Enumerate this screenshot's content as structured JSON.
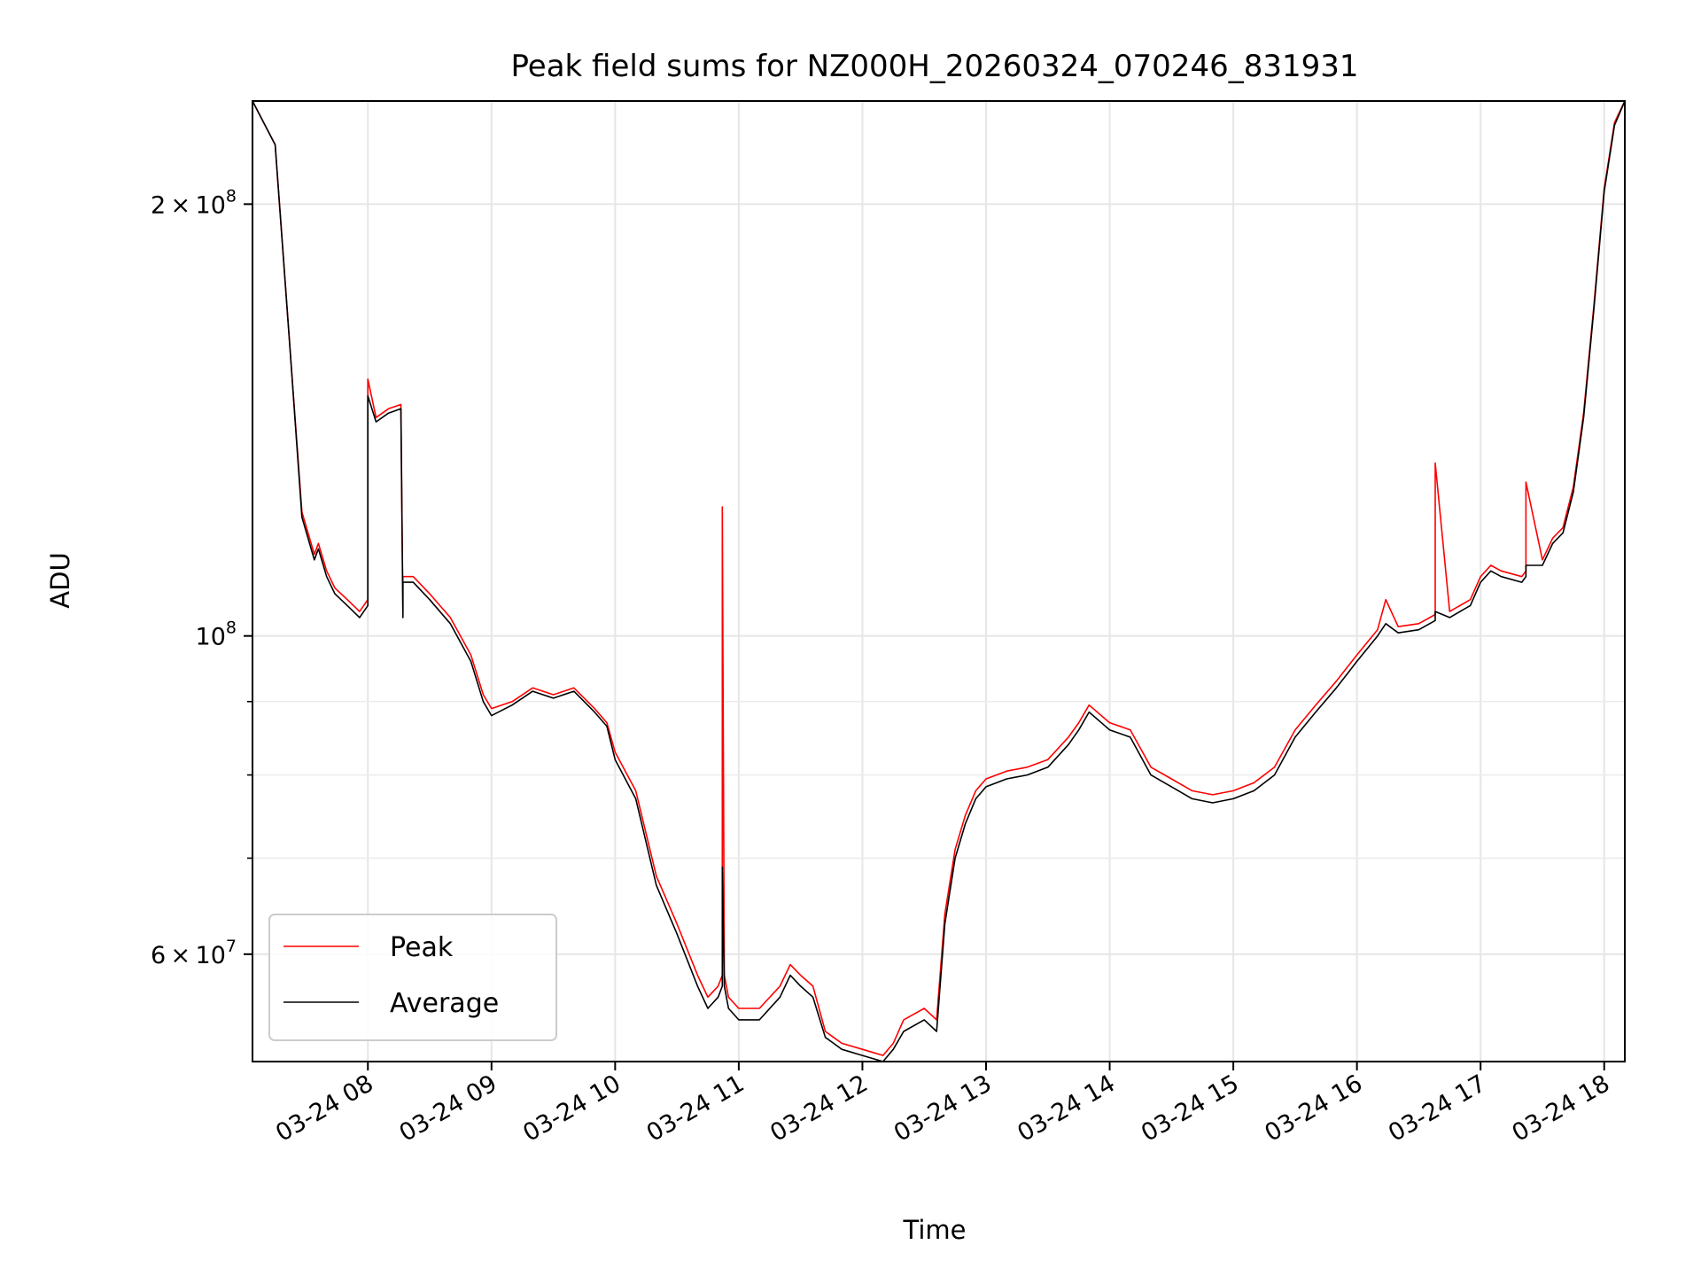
{
  "chart_data": {
    "type": "line",
    "title": "Peak field sums for NZ000H_20260324_070246_831931",
    "xlabel": "Time",
    "ylabel": "ADU",
    "y_scale": "log",
    "xlim": [
      "2026-03-24 07:04",
      "2026-03-24 18:10"
    ],
    "ylim": [
      50500000,
      236000000
    ],
    "x_ticks": [
      "2026-03-24 08:00",
      "2026-03-24 09:00",
      "2026-03-24 10:00",
      "2026-03-24 11:00",
      "2026-03-24 12:00",
      "2026-03-24 13:00",
      "2026-03-24 14:00",
      "2026-03-24 15:00",
      "2026-03-24 16:00",
      "2026-03-24 17:00",
      "2026-03-24 18:00"
    ],
    "x_tick_labels": [
      "03-24 08",
      "03-24 09",
      "03-24 10",
      "03-24 11",
      "03-24 12",
      "03-24 13",
      "03-24 14",
      "03-24 15",
      "03-24 16",
      "03-24 17",
      "03-24 18"
    ],
    "y_ticks": [
      200000000,
      100000000,
      60000000
    ],
    "y_tick_labels": [
      {
        "mantissa": "2",
        "exponent": "8"
      },
      {
        "mantissa": "",
        "exponent": "8"
      },
      {
        "mantissa": "6",
        "exponent": "7"
      }
    ],
    "grid": true,
    "legend_position": "lower-left",
    "series": [
      {
        "name": "Peak",
        "color": "#ff0000",
        "x": [
          "07:04",
          "07:15",
          "07:22",
          "07:28",
          "07:34",
          "07:36",
          "07:40",
          "07:44",
          "07:50",
          "07:56",
          "08:00",
          "08:00",
          "08:04",
          "08:10",
          "08:16",
          "08:17",
          "08:17",
          "08:22",
          "08:30",
          "08:40",
          "08:50",
          "08:56",
          "09:00",
          "09:10",
          "09:20",
          "09:30",
          "09:40",
          "09:50",
          "09:56",
          "10:00",
          "10:10",
          "10:20",
          "10:30",
          "10:40",
          "10:45",
          "10:50",
          "10:52",
          "10:52",
          "10:53",
          "10:55",
          "11:00",
          "11:10",
          "11:20",
          "11:25",
          "11:30",
          "11:36",
          "11:42",
          "11:46",
          "11:50",
          "12:00",
          "12:10",
          "12:15",
          "12:20",
          "12:30",
          "12:36",
          "12:40",
          "12:45",
          "12:50",
          "12:55",
          "13:00",
          "13:10",
          "13:20",
          "13:30",
          "13:40",
          "13:45",
          "13:50",
          "14:00",
          "14:10",
          "14:20",
          "14:30",
          "14:40",
          "14:50",
          "15:00",
          "15:10",
          "15:20",
          "15:30",
          "15:40",
          "15:50",
          "16:00",
          "16:10",
          "16:14",
          "16:20",
          "16:30",
          "16:38",
          "16:38",
          "16:45",
          "16:55",
          "17:00",
          "17:05",
          "17:10",
          "17:20",
          "17:22",
          "17:22",
          "17:30",
          "17:35",
          "17:40",
          "17:45",
          "17:50",
          "17:55",
          "18:00",
          "18:05",
          "18:10"
        ],
        "y": [
          236000000,
          220000000,
          160000000,
          122000000,
          114000000,
          116000000,
          111000000,
          108000000,
          106000000,
          104000000,
          106000000,
          151000000,
          142000000,
          144000000,
          145000000,
          104000000,
          110000000,
          110000000,
          107000000,
          103000000,
          97000000,
          91000000,
          89000000,
          90000000,
          92000000,
          91000000,
          92000000,
          89000000,
          87000000,
          83000000,
          78000000,
          68000000,
          63000000,
          58000000,
          56000000,
          57000000,
          58000000,
          123000000,
          58000000,
          56000000,
          55000000,
          55000000,
          57000000,
          59000000,
          58000000,
          57000000,
          53000000,
          52500000,
          52000000,
          51500000,
          51000000,
          52000000,
          54000000,
          55000000,
          54000000,
          64000000,
          71000000,
          75000000,
          78000000,
          79500000,
          80500000,
          81000000,
          82000000,
          85000000,
          87000000,
          89500000,
          87000000,
          86000000,
          81000000,
          79500000,
          78000000,
          77500000,
          78000000,
          79000000,
          81000000,
          86000000,
          89500000,
          93000000,
          97000000,
          101000000,
          106000000,
          101500000,
          102000000,
          103500000,
          132000000,
          104000000,
          106000000,
          110000000,
          112000000,
          111000000,
          110000000,
          111000000,
          128000000,
          113000000,
          117000000,
          119000000,
          127000000,
          143000000,
          170000000,
          205000000,
          228000000,
          236000000
        ]
      },
      {
        "name": "Average",
        "color": "#000000",
        "x": [
          "07:04",
          "07:15",
          "07:22",
          "07:28",
          "07:34",
          "07:36",
          "07:40",
          "07:44",
          "07:50",
          "07:56",
          "08:00",
          "08:00",
          "08:04",
          "08:10",
          "08:16",
          "08:17",
          "08:17",
          "08:22",
          "08:30",
          "08:40",
          "08:50",
          "08:56",
          "09:00",
          "09:10",
          "09:20",
          "09:30",
          "09:40",
          "09:50",
          "09:56",
          "10:00",
          "10:10",
          "10:20",
          "10:30",
          "10:40",
          "10:45",
          "10:50",
          "10:52",
          "10:52",
          "10:53",
          "10:55",
          "11:00",
          "11:10",
          "11:20",
          "11:25",
          "11:30",
          "11:36",
          "11:42",
          "11:46",
          "11:50",
          "12:00",
          "12:10",
          "12:15",
          "12:20",
          "12:30",
          "12:36",
          "12:40",
          "12:45",
          "12:50",
          "12:55",
          "13:00",
          "13:10",
          "13:20",
          "13:30",
          "13:40",
          "13:45",
          "13:50",
          "14:00",
          "14:10",
          "14:20",
          "14:30",
          "14:40",
          "14:50",
          "15:00",
          "15:10",
          "15:20",
          "15:30",
          "15:40",
          "15:50",
          "16:00",
          "16:10",
          "16:14",
          "16:20",
          "16:30",
          "16:38",
          "16:38",
          "16:45",
          "16:55",
          "17:00",
          "17:05",
          "17:10",
          "17:20",
          "17:22",
          "17:22",
          "17:30",
          "17:35",
          "17:40",
          "17:45",
          "17:50",
          "17:55",
          "18:00",
          "18:05",
          "18:10"
        ],
        "y": [
          236000000,
          220000000,
          160000000,
          121000000,
          113000000,
          115000000,
          110000000,
          107000000,
          105000000,
          103000000,
          105000000,
          147000000,
          141000000,
          143000000,
          144000000,
          103000000,
          109000000,
          109000000,
          106000000,
          102000000,
          96000000,
          90000000,
          88000000,
          89500000,
          91500000,
          90500000,
          91500000,
          88500000,
          86500000,
          82000000,
          77000000,
          67000000,
          62000000,
          57000000,
          55000000,
          56000000,
          57000000,
          69000000,
          57000000,
          55000000,
          54000000,
          54000000,
          56000000,
          58000000,
          57000000,
          56000000,
          52500000,
          52000000,
          51500000,
          51000000,
          50500000,
          51500000,
          53000000,
          54000000,
          53000000,
          63000000,
          70000000,
          74000000,
          77000000,
          78500000,
          79500000,
          80000000,
          81000000,
          84000000,
          86000000,
          88500000,
          86000000,
          85000000,
          80000000,
          78500000,
          77000000,
          76500000,
          77000000,
          78000000,
          80000000,
          85000000,
          88500000,
          92000000,
          96000000,
          100000000,
          102000000,
          100500000,
          101000000,
          102500000,
          104000000,
          103000000,
          105000000,
          109000000,
          111000000,
          110000000,
          109000000,
          110000000,
          112000000,
          112000000,
          116000000,
          118000000,
          126000000,
          142000000,
          169000000,
          204000000,
          227000000,
          236000000
        ]
      }
    ]
  }
}
